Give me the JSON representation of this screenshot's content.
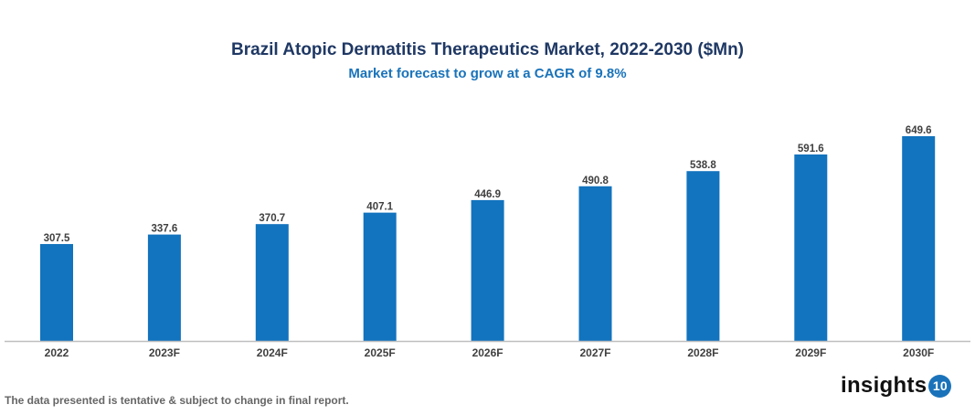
{
  "chart_data": {
    "type": "bar",
    "title": "Brazil Atopic Dermatitis Therapeutics Market, 2022-2030 ($Mn)",
    "subtitle": "Market forecast to grow at a CAGR of 9.8%",
    "categories": [
      "2022",
      "2023F",
      "2024F",
      "2025F",
      "2026F",
      "2027F",
      "2028F",
      "2029F",
      "2030F"
    ],
    "values": [
      307.5,
      337.6,
      370.7,
      407.1,
      446.9,
      490.8,
      538.8,
      591.6,
      649.6
    ],
    "xlabel": "",
    "ylabel": "",
    "ylim": [
      0,
      649.6
    ],
    "grid": false,
    "legend": "none",
    "bar_color": "#1273be"
  },
  "footer": {
    "note": "The data presented is tentative & subject to change in final report.",
    "logo_text": "insights",
    "logo_badge": "10"
  }
}
